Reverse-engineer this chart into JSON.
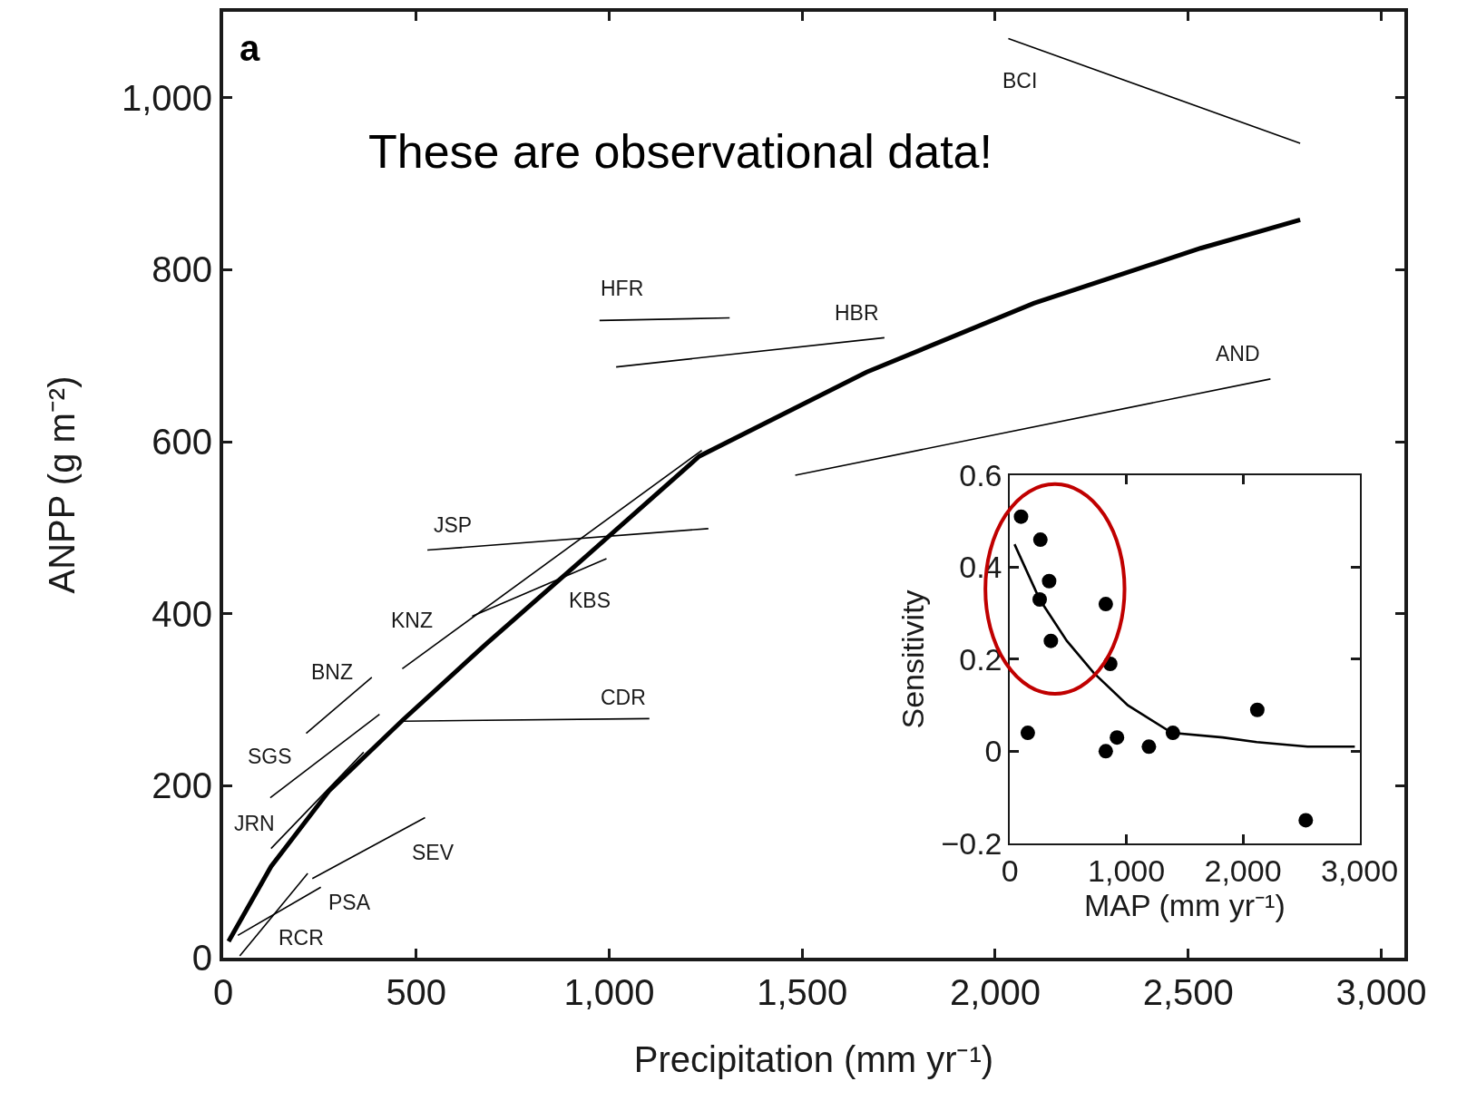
{
  "chart_data": [
    {
      "type": "line",
      "xlabel": "Precipitation (mm yr⁻¹)",
      "ylabel": "ANPP (g m⁻²)",
      "xlim": [
        0,
        3060
      ],
      "ylim": [
        0,
        1100
      ],
      "xticks": [
        0,
        500,
        {
          "value": 1000,
          "label": "1,000"
        },
        {
          "value": 1500,
          "label": "1,500"
        },
        {
          "value": 2000,
          "label": "2,000"
        },
        {
          "value": 2500,
          "label": "2,500"
        },
        {
          "value": 3000,
          "label": "3,000"
        }
      ],
      "yticks": [
        0,
        200,
        400,
        600,
        800,
        {
          "value": 1000,
          "label": "1,000"
        }
      ],
      "line_style": "solid",
      "series": [
        {
          "color": "#000000",
          "x": [
            14,
            124,
            276,
            462,
            679,
            941,
            1233,
            1667,
            2100,
            2532,
            2790
          ],
          "values": [
            19,
            106,
            195,
            275,
            364,
            467,
            583,
            681,
            761,
            825,
            858
          ]
        },
        {
          "color": "#000000",
          "x": [
            43,
            219
          ],
          "values": [
            2,
            98
          ]
        },
        {
          "color": "#000000",
          "x": [
            38,
            253
          ],
          "values": [
            26,
            82
          ]
        },
        {
          "color": "#000000",
          "x": [
            231,
            523
          ],
          "values": [
            92,
            163
          ]
        },
        {
          "color": "#000000",
          "x": [
            124,
            364
          ],
          "values": [
            127,
            239
          ]
        },
        {
          "color": "#000000",
          "x": [
            122,
            405
          ],
          "values": [
            186,
            283
          ]
        },
        {
          "color": "#000000",
          "x": [
            215,
            385
          ],
          "values": [
            261,
            326
          ]
        },
        {
          "color": "#000000",
          "x": [
            464,
            1240
          ],
          "values": [
            336,
            590
          ]
        },
        {
          "color": "#000000",
          "x": [
            645,
            993
          ],
          "values": [
            397,
            464
          ]
        },
        {
          "color": "#000000",
          "x": [
            529,
            1257
          ],
          "values": [
            474,
            499
          ]
        },
        {
          "color": "#000000",
          "x": [
            462,
            1104
          ],
          "values": [
            275,
            278
          ]
        },
        {
          "color": "#000000",
          "x": [
            975,
            1312
          ],
          "values": [
            741,
            744
          ]
        },
        {
          "color": "#000000",
          "x": [
            1018,
            1713
          ],
          "values": [
            687,
            721
          ]
        },
        {
          "color": "#000000",
          "x": [
            1482,
            2713
          ],
          "values": [
            561,
            673
          ]
        },
        {
          "color": "#000000",
          "x": [
            2034,
            2790
          ],
          "values": [
            1069,
            947
          ]
        }
      ],
      "annotations": [
        "a",
        "These are observational data!",
        {
          "text": "RCR",
          "x": 43,
          "y": 2
        },
        {
          "text": "PSA",
          "x": 253,
          "y": 82
        },
        {
          "text": "SEV",
          "x": 523,
          "y": 163
        },
        {
          "text": "JRN",
          "x": 124,
          "y": 127
        },
        {
          "text": "SGS",
          "x": 122,
          "y": 186
        },
        {
          "text": "BNZ",
          "x": 385,
          "y": 326
        },
        {
          "text": "KNZ",
          "x": 464,
          "y": 336
        },
        {
          "text": "KBS",
          "x": 993,
          "y": 464
        },
        {
          "text": "JSP",
          "x": 529,
          "y": 474
        },
        {
          "text": "CDR",
          "x": 1104,
          "y": 278
        },
        {
          "text": "HFR",
          "x": 975,
          "y": 741
        },
        {
          "text": "HBR",
          "x": 1713,
          "y": 721
        },
        {
          "text": "AND",
          "x": 2713,
          "y": 673
        },
        {
          "text": "BCI",
          "x": 2034,
          "y": 1069
        }
      ]
    },
    {
      "type": "scatter",
      "xlabel": "MAP (mm yr⁻¹)",
      "ylabel": "Sensitivity",
      "xlim": [
        0,
        3000
      ],
      "ylim": [
        -0.2,
        0.6
      ],
      "xticks": [
        0,
        {
          "value": 1000,
          "label": "1,000"
        },
        {
          "value": 2000,
          "label": "2,000"
        },
        {
          "value": 3000,
          "label": "3,000"
        }
      ],
      "yticks": [
        {
          "value": -0.2,
          "label": "−0.2"
        },
        0,
        0.2,
        0.4,
        0.6
      ],
      "series": [
        {
          "color": "#000000",
          "marker": "circle",
          "x": [
            96,
            262,
            337,
            256,
            352,
            823,
            861,
            154,
            823,
            919,
            1193,
            1399,
            2123,
            2539
          ],
          "values": [
            0.51,
            0.46,
            0.37,
            0.33,
            0.24,
            0.32,
            0.19,
            0.04,
            0.0,
            0.03,
            0.01,
            0.04,
            0.09,
            -0.15
          ]
        },
        {
          "type": "line",
          "marker": "none",
          "color": "#000000",
          "x": [
            40,
            256,
            489,
            721,
            1012,
            1390,
            1827,
            2118,
            2554,
            2960
          ],
          "values": [
            0.45,
            0.33,
            0.24,
            0.17,
            0.1,
            0.04,
            0.03,
            0.02,
            0.01,
            0.01
          ]
        }
      ]
    }
  ]
}
